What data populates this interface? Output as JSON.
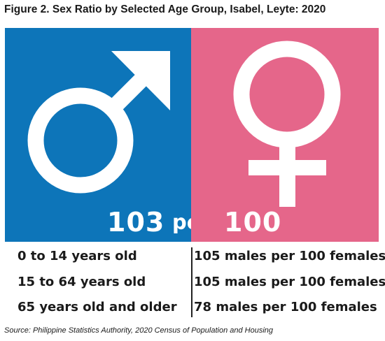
{
  "title": "Figure 2. Sex Ratio by Selected Age Group, Isabel, Leyte: 2020",
  "colors": {
    "male_panel": "#0d75b9",
    "female_panel": "#e5668a",
    "symbol": "#ffffff"
  },
  "icons": {
    "male": "male-symbol-icon",
    "female": "female-symbol-icon"
  },
  "ratio": {
    "males": "103",
    "per": "per",
    "females": "100"
  },
  "rows": [
    {
      "age_group": "0 to 14 years old",
      "value": "105 males per 100 females"
    },
    {
      "age_group": "15 to 64 years old",
      "value": "105 males per 100 females"
    },
    {
      "age_group": "65 years old and older",
      "value": "78 males per 100 females"
    }
  ],
  "source": "Source: Philippine Statistics Authority, 2020 Census of Population and Housing"
}
